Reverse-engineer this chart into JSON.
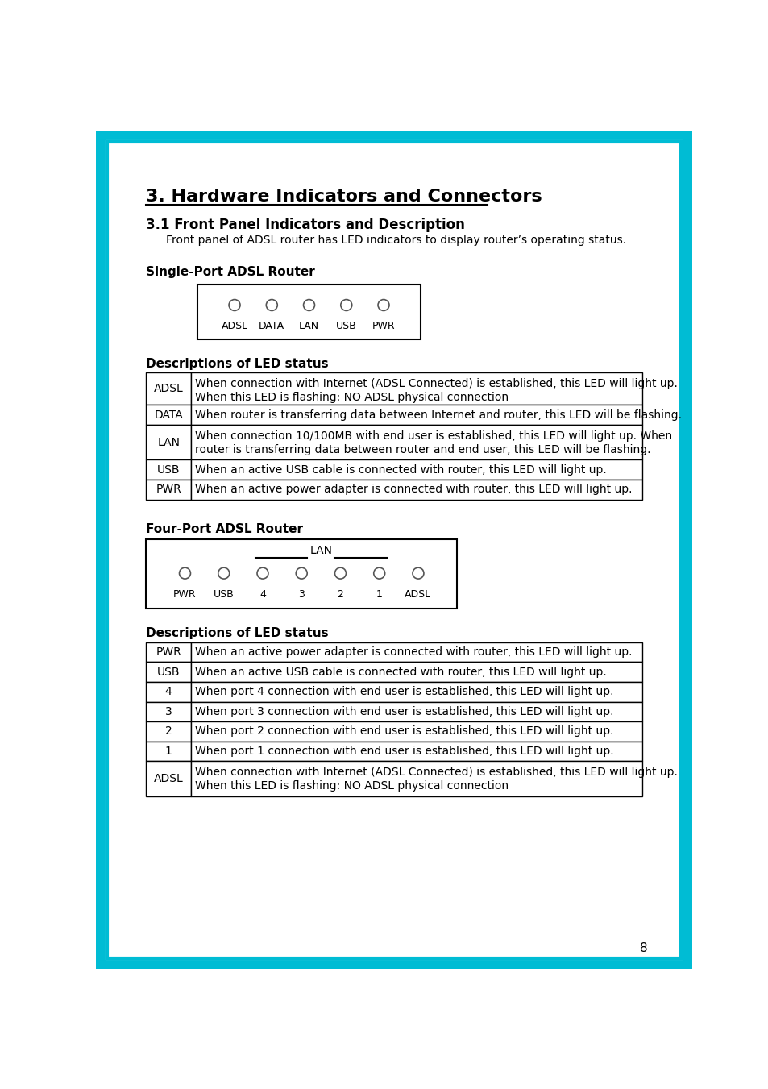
{
  "page_bg": "#ffffff",
  "border_outer_color": "#00bcd4",
  "font_color": "#000000",
  "table_border_color": "#000000",
  "led_circle_color": "#888888",
  "router_box_color": "#000000",
  "title": "3. Hardware Indicators and Connectors",
  "subtitle": "3.1 Front Panel Indicators and Description",
  "intro_text": "Front panel of ADSL router has LED indicators to display router’s operating status.",
  "single_port_label": "Single-Port ADSL Router",
  "single_port_leds": [
    "ADSL",
    "DATA",
    "LAN",
    "USB",
    "PWR"
  ],
  "four_port_label": "Four-Port ADSL Router",
  "four_port_leds": [
    "PWR",
    "USB",
    "4",
    "3",
    "2",
    "1",
    "ADSL"
  ],
  "desc_label1": "Descriptions of LED status",
  "desc_label2": "Descriptions of LED status",
  "single_table": [
    [
      "ADSL",
      "When connection with Internet (ADSL Connected) is established, this LED will light up.\nWhen this LED is flashing: NO ADSL physical connection"
    ],
    [
      "DATA",
      "When router is transferring data between Internet and router, this LED will be flashing."
    ],
    [
      "LAN",
      "When connection 10/100MB with end user is established, this LED will light up. When\nrouter is transferring data between router and end user, this LED will be flashing."
    ],
    [
      "USB",
      "When an active USB cable is connected with router, this LED will light up."
    ],
    [
      "PWR",
      "When an active power adapter is connected with router, this LED will light up."
    ]
  ],
  "four_table": [
    [
      "PWR",
      "When an active power adapter is connected with router, this LED will light up."
    ],
    [
      "USB",
      "When an active USB cable is connected with router, this LED will light up."
    ],
    [
      "4",
      "When port 4 connection with end user is established, this LED will light up."
    ],
    [
      "3",
      "When port 3 connection with end user is established, this LED will light up."
    ],
    [
      "2",
      "When port 2 connection with end user is established, this LED will light up."
    ],
    [
      "1",
      "When port 1 connection with end user is established, this LED will light up."
    ],
    [
      "ADSL",
      "When connection with Internet (ADSL Connected) is established, this LED will light up.\nWhen this LED is flashing: NO ADSL physical connection"
    ]
  ],
  "page_number": "8",
  "single_row_heights": [
    52,
    32,
    56,
    32,
    32
  ],
  "four_row_heights": [
    32,
    32,
    32,
    32,
    32,
    32,
    56
  ]
}
